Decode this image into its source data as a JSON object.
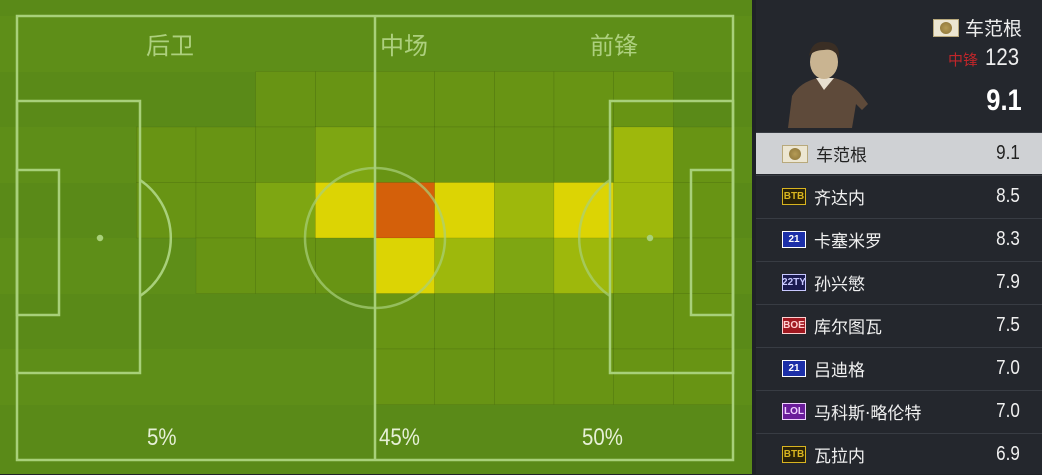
{
  "pitch": {
    "zones": [
      "后卫",
      "中场",
      "前锋"
    ],
    "percentages": [
      "5%",
      "45%",
      "50%"
    ],
    "heatmap_levels": [
      [
        0,
        0,
        0,
        0,
        0,
        0,
        0,
        0,
        0,
        0,
        0,
        0
      ],
      [
        0,
        0,
        0,
        0,
        1,
        1,
        1,
        1,
        1,
        1,
        1,
        0
      ],
      [
        0,
        0,
        1,
        1,
        1,
        2,
        1,
        1,
        1,
        1,
        3,
        1
      ],
      [
        0,
        0,
        1,
        1,
        2,
        4,
        5,
        4,
        3,
        4,
        3,
        1
      ],
      [
        0,
        0,
        0,
        1,
        1,
        1,
        4,
        3,
        2,
        3,
        2,
        1
      ],
      [
        0,
        0,
        0,
        0,
        0,
        0,
        1,
        1,
        1,
        1,
        1,
        1
      ],
      [
        0,
        0,
        0,
        0,
        0,
        0,
        1,
        1,
        1,
        1,
        1,
        1
      ],
      [
        0,
        0,
        0,
        0,
        0,
        0,
        0,
        0,
        0,
        0,
        0,
        0
      ]
    ],
    "heat_colors": [
      "",
      "#689414",
      "#7ea612",
      "#9eb80c",
      "#dcd404",
      "#d4600a"
    ]
  },
  "player": {
    "name": "车范根",
    "position": "中锋",
    "overall": "123",
    "rating": "9.1",
    "badge_icon": "icon-legend-badge"
  },
  "list": [
    {
      "badge": "icon",
      "name": "车范根",
      "rating": "9.1",
      "selected": true
    },
    {
      "badge": "BTB",
      "name": "齐达内",
      "rating": "8.5",
      "color": "#d8b420",
      "bg": "#2a2208"
    },
    {
      "badge": "21",
      "name": "卡塞米罗",
      "rating": "8.3",
      "color": "#ffffff",
      "bg": "#1c2fa8"
    },
    {
      "badge": "22TY",
      "name": "孙兴慜",
      "rating": "7.9",
      "color": "#c8c8ff",
      "bg": "#1a1a50"
    },
    {
      "badge": "BOE",
      "name": "库尔图瓦",
      "rating": "7.5",
      "color": "#ffd0d0",
      "bg": "#a01820"
    },
    {
      "badge": "21",
      "name": "吕迪格",
      "rating": "7.0",
      "color": "#ffffff",
      "bg": "#1c2fa8"
    },
    {
      "badge": "LOL",
      "name": "马科斯·略伦特",
      "rating": "7.0",
      "color": "#f0d0ff",
      "bg": "#6a1c9a"
    },
    {
      "badge": "BTB",
      "name": "瓦拉内",
      "rating": "6.9",
      "color": "#d8b420",
      "bg": "#2a2208"
    }
  ]
}
